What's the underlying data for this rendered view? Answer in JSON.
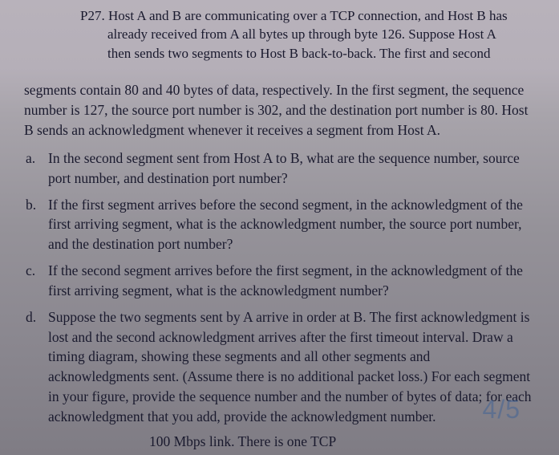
{
  "problem": {
    "label": "P27.",
    "header_line1": "Host A and B are communicating over a TCP connection, and Host B has",
    "header_line2": "already received from A all bytes up through byte 126. Suppose Host A",
    "header_line3": "then sends two segments to Host B back-to-back. The first and second",
    "intro": "segments contain 80 and 40 bytes of data, respectively. In the first segment, the sequence number is 127, the source port number is 302, and the destination port number is 80. Host B sends an acknowledgment whenever it receives a segment from Host A.",
    "questions": {
      "a": {
        "marker": "a.",
        "text": "In the second segment sent from Host A to B, what are the sequence number, source port number, and destination port number?"
      },
      "b": {
        "marker": "b.",
        "text": "If the first segment arrives before the second segment, in the acknowledgment of the first arriving segment, what is the acknowledgment number, the source port number, and the destination port number?"
      },
      "c": {
        "marker": "c.",
        "text": "If the second segment arrives before the first segment, in the acknowledgment of the first arriving segment, what is the acknowledgment number?"
      },
      "d": {
        "marker": "d.",
        "text": "Suppose the two segments sent by A arrive in order at B. The first acknowledgment is lost and the second acknowledgment arrives after the first timeout interval. Draw a timing diagram, showing these segments and all other segments and acknowledgments sent. (Assume there is no additional packet loss.) For each segment in your figure, provide the sequence number and the number of bytes of data; for each acknowledgment that you add, provide the acknowledgment number."
      }
    },
    "cut_line": "100 Mbps link. There is one TCP"
  },
  "watermark": "4/5"
}
